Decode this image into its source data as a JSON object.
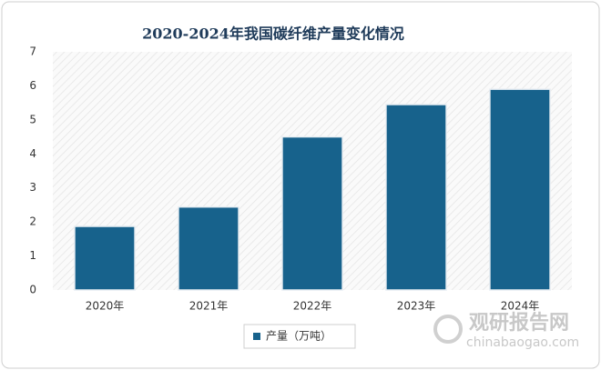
{
  "chart_data": {
    "type": "bar",
    "title": "2020-2024年我国碳纤维产量变化情况",
    "categories": [
      "2020年",
      "2021年",
      "2022年",
      "2023年",
      "2024年"
    ],
    "series": [
      {
        "name": "产量（万吨）",
        "color": "#17628c",
        "values": [
          1.87,
          2.44,
          4.5,
          5.45,
          5.9
        ]
      }
    ],
    "ylim": [
      0,
      7
    ],
    "yticks": [
      0,
      1,
      2,
      3,
      4,
      5,
      6,
      7
    ],
    "grid": false,
    "legend": "bottom",
    "watermark": {
      "name": "观研报告网",
      "url": "chinabaogao.com"
    }
  }
}
